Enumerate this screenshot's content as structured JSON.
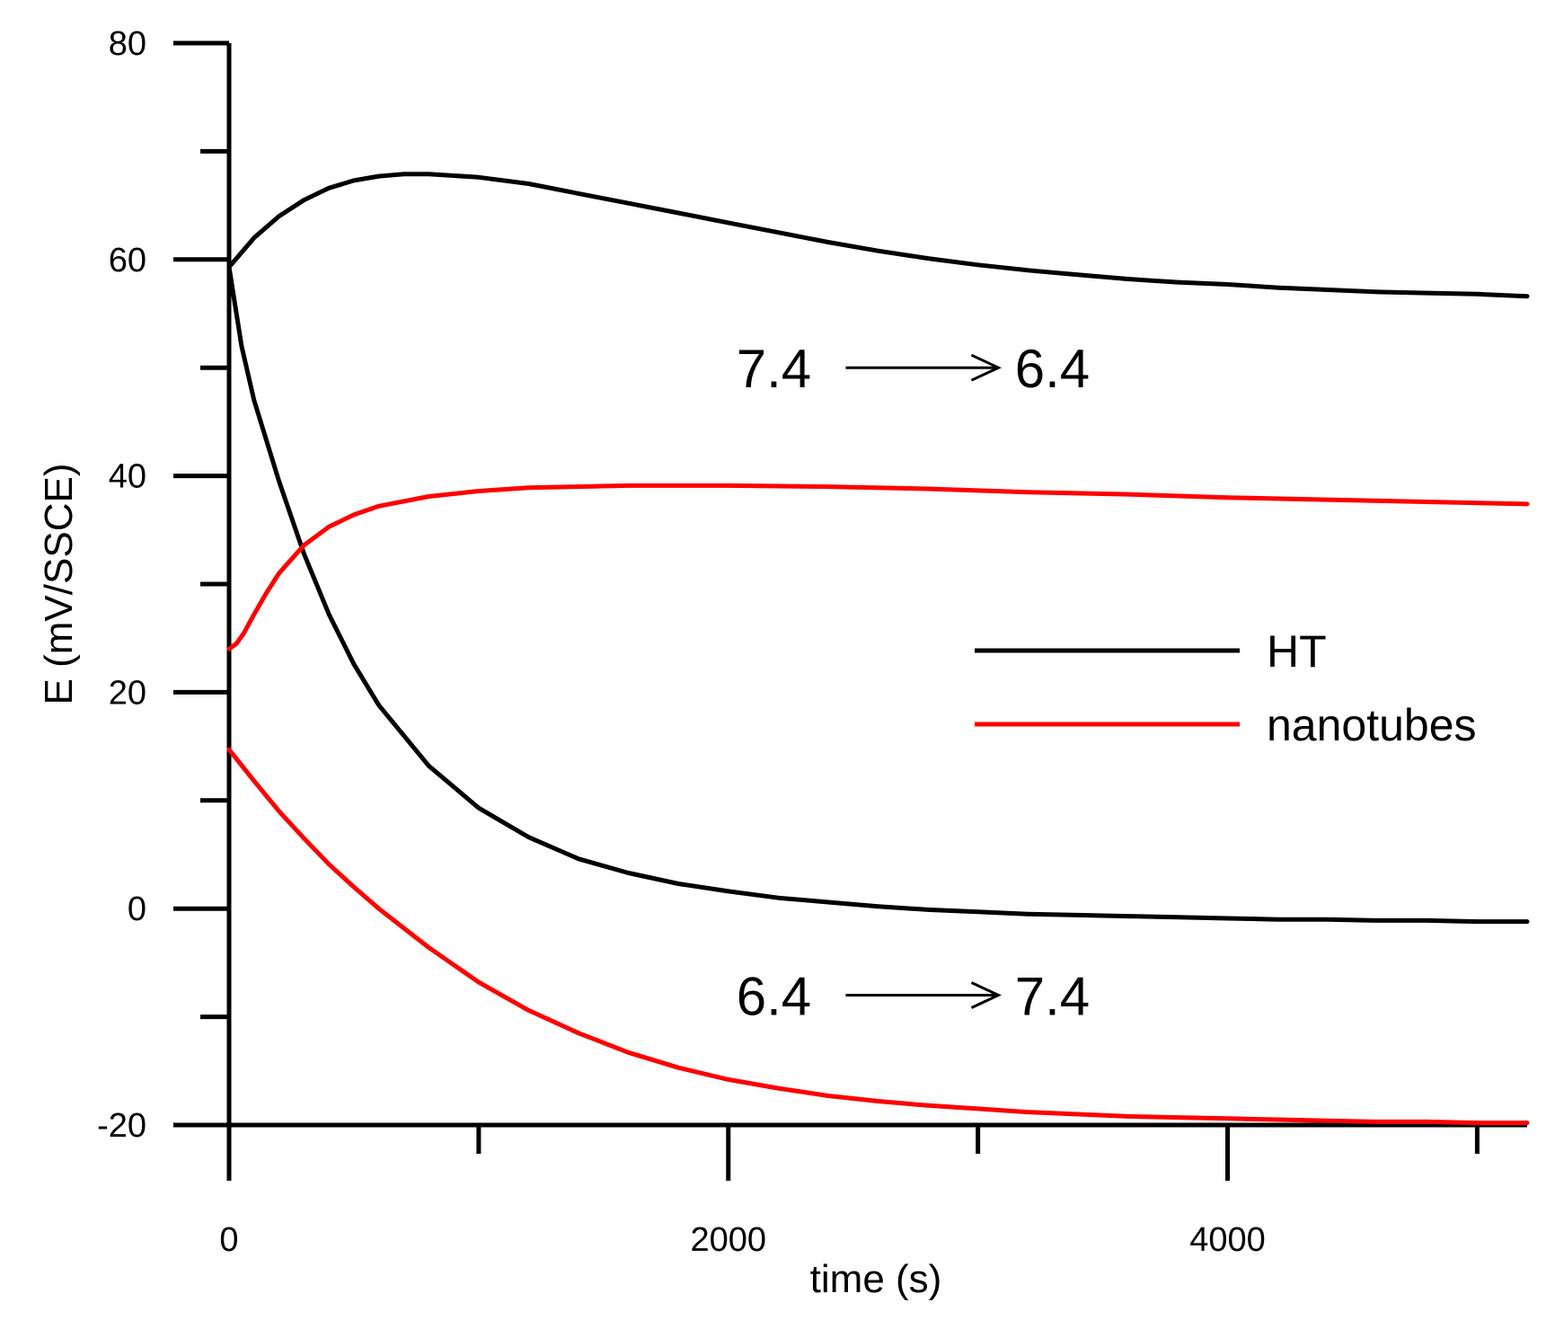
{
  "chart_data": {
    "type": "line",
    "xlabel": "time (s)",
    "ylabel": "E (mV/SSCE)",
    "xlim": [
      0,
      5200
    ],
    "ylim": [
      -20,
      80
    ],
    "x_ticks_labeled": [
      0,
      2000,
      4000
    ],
    "x_ticks_labels": [
      "0",
      "2000",
      "4000"
    ],
    "x_ticks_minor": [
      1000,
      3000,
      5000
    ],
    "y_ticks_labeled": [
      -20,
      0,
      20,
      40,
      60,
      80
    ],
    "y_ticks_labels": [
      "-20",
      "0",
      "20",
      "40",
      "60",
      "80"
    ],
    "y_ticks_minor": [
      -10,
      10,
      30,
      50,
      70
    ],
    "grid": false,
    "legend_placement": "right",
    "legend": [
      {
        "label": "HT",
        "color": "#000000"
      },
      {
        "label": "nanotubes",
        "color": "#ff0000"
      }
    ],
    "annotations": [
      {
        "from": "7.4",
        "to": "6.4",
        "x": 3100,
        "y": 50
      },
      {
        "from": "6.4",
        "to": "7.4",
        "x": 3100,
        "y": -8
      }
    ],
    "series": [
      {
        "legend_index": 0,
        "color": "#000000",
        "x": [
          0,
          100,
          200,
          300,
          400,
          500,
          600,
          700,
          800,
          1000,
          1200,
          1400,
          1600,
          1800,
          2000,
          2200,
          2400,
          2600,
          2800,
          3000,
          3200,
          3400,
          3600,
          3800,
          4000,
          4200,
          4400,
          4600,
          4800,
          5000,
          5200
        ],
        "y": [
          59.3,
          62.0,
          64.0,
          65.5,
          66.6,
          67.3,
          67.7,
          67.9,
          67.9,
          67.6,
          67.0,
          66.1,
          65.2,
          64.3,
          63.4,
          62.5,
          61.6,
          60.8,
          60.1,
          59.5,
          59.0,
          58.6,
          58.2,
          57.9,
          57.7,
          57.4,
          57.2,
          57.0,
          56.9,
          56.8,
          56.6
        ]
      },
      {
        "legend_index": 0,
        "color": "#000000",
        "x": [
          0,
          50,
          100,
          200,
          300,
          400,
          500,
          600,
          800,
          1000,
          1200,
          1400,
          1600,
          1800,
          2000,
          2200,
          2400,
          2600,
          2800,
          3000,
          3200,
          3400,
          3600,
          3800,
          4000,
          4200,
          4400,
          4600,
          4800,
          5000,
          5200
        ],
        "y": [
          59.3,
          52.0,
          47.0,
          39.5,
          32.8,
          27.2,
          22.6,
          18.8,
          13.2,
          9.3,
          6.6,
          4.6,
          3.3,
          2.3,
          1.6,
          1.0,
          0.6,
          0.2,
          -0.1,
          -0.3,
          -0.5,
          -0.6,
          -0.7,
          -0.8,
          -0.9,
          -1.0,
          -1.0,
          -1.1,
          -1.1,
          -1.2,
          -1.2
        ]
      },
      {
        "legend_index": 1,
        "color": "#ff0000",
        "x": [
          0,
          30,
          60,
          100,
          150,
          200,
          300,
          400,
          500,
          600,
          800,
          1000,
          1200,
          1400,
          1600,
          1800,
          2000,
          2400,
          2800,
          3200,
          3600,
          4000,
          4400,
          4800,
          5200
        ],
        "y": [
          24.0,
          24.5,
          25.5,
          27.2,
          29.2,
          31.0,
          33.6,
          35.3,
          36.4,
          37.2,
          38.1,
          38.6,
          38.9,
          39.0,
          39.1,
          39.1,
          39.1,
          39.0,
          38.8,
          38.5,
          38.3,
          38.0,
          37.8,
          37.6,
          37.4
        ]
      },
      {
        "legend_index": 1,
        "color": "#ff0000",
        "x": [
          0,
          100,
          200,
          300,
          400,
          500,
          600,
          800,
          1000,
          1200,
          1400,
          1600,
          1800,
          2000,
          2200,
          2400,
          2600,
          2800,
          3000,
          3200,
          3400,
          3600,
          3800,
          4000,
          4200,
          4400,
          4600,
          4800,
          5000,
          5200
        ],
        "y": [
          14.7,
          11.8,
          9.0,
          6.5,
          4.1,
          2.0,
          0.0,
          -3.6,
          -6.8,
          -9.4,
          -11.5,
          -13.3,
          -14.7,
          -15.8,
          -16.6,
          -17.3,
          -17.8,
          -18.2,
          -18.5,
          -18.8,
          -19.0,
          -19.2,
          -19.3,
          -19.4,
          -19.5,
          -19.6,
          -19.7,
          -19.7,
          -19.8,
          -19.8
        ]
      }
    ]
  }
}
